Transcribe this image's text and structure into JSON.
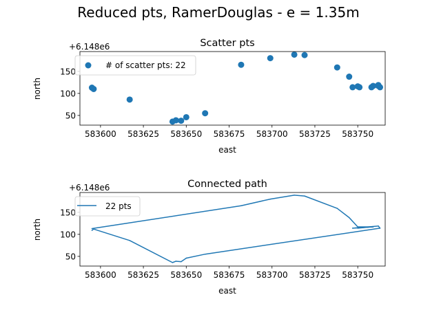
{
  "figure": {
    "suptitle": "Reduced pts, RamerDouglas - e = 1.35m"
  },
  "chart_data": [
    {
      "type": "scatter",
      "title": "Scatter pts",
      "xlabel": "east",
      "ylabel": "north",
      "y_offset_label": "+6.148e6",
      "xlim": [
        583588,
        583766
      ],
      "ylim": [
        28,
        195
      ],
      "xticks": [
        583600,
        583625,
        583650,
        583675,
        583700,
        583725,
        583750
      ],
      "yticks": [
        50,
        100,
        150
      ],
      "legend": {
        "placement": "upper-left",
        "label": "# of scatter pts: 22"
      },
      "color": "#1f77b4",
      "x": [
        583595,
        583596,
        583617,
        583642,
        583644,
        583647,
        583650,
        583661,
        583682,
        583699,
        583713,
        583719,
        583738,
        583745,
        583747,
        583750,
        583751,
        583758,
        583759,
        583762,
        583763,
        583762
      ],
      "y": [
        113,
        110,
        86,
        36,
        39,
        38,
        46,
        55,
        165,
        180,
        188,
        187,
        159,
        138,
        114,
        116,
        114,
        114,
        117,
        117,
        114,
        119
      ]
    },
    {
      "type": "line",
      "title": "Connected path",
      "xlabel": "east",
      "ylabel": "north",
      "y_offset_label": "+6.148e6",
      "xlim": [
        583588,
        583766
      ],
      "ylim": [
        28,
        195
      ],
      "xticks": [
        583600,
        583625,
        583650,
        583675,
        583700,
        583725,
        583750
      ],
      "yticks": [
        50,
        100,
        150
      ],
      "legend": {
        "placement": "upper-left",
        "label": "22 pts"
      },
      "color": "#1f77b4",
      "x": [
        583595,
        583596,
        583617,
        583642,
        583644,
        583647,
        583650,
        583661,
        583763,
        583762,
        583751,
        583750,
        583758,
        583747,
        583759,
        583750,
        583745,
        583738,
        583719,
        583713,
        583699,
        583682,
        583595
      ],
      "y": [
        109,
        112,
        86,
        36,
        39,
        38,
        46,
        55,
        114,
        119,
        115,
        114,
        117,
        114,
        117,
        117,
        138,
        159,
        187,
        189,
        180,
        165,
        113
      ]
    }
  ]
}
